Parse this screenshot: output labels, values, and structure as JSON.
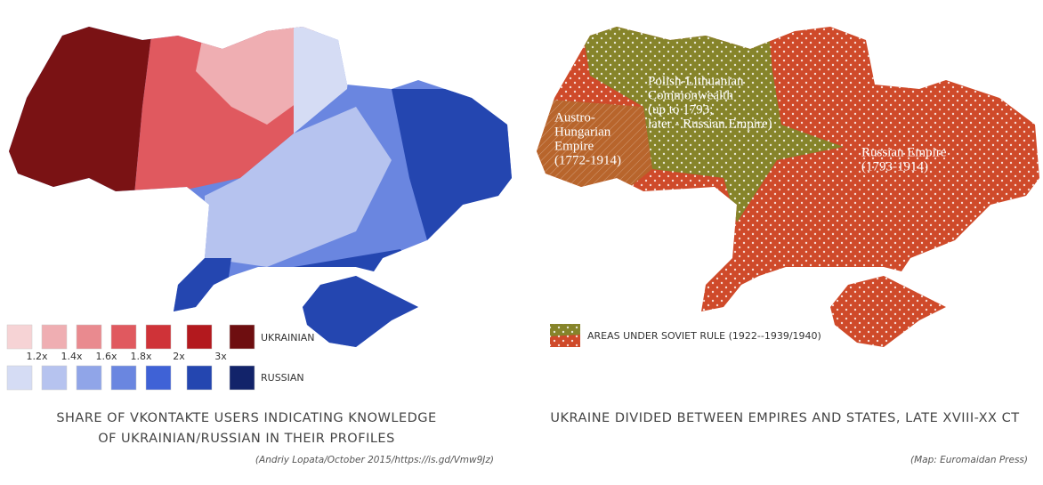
{
  "left_map": {
    "legend": {
      "ratios": [
        "1.2x",
        "1.4x",
        "1.6x",
        "1.8x",
        "2x",
        "3x"
      ],
      "ukrainian_label": "UKRAINIAN",
      "russian_label": "RUSSIAN"
    },
    "caption": [
      "SHARE OF VKONTAKTE USERS INDICATING KNOWLEDGE",
      "OF UKRAINIAN/RUSSIAN IN THEIR PROFILES"
    ],
    "credit": "(Andriy Lopata/October 2015/https://is.gd/Vmw9Jz)"
  },
  "right_map": {
    "regions": [
      {
        "lines": [
          "Austro-",
          "Hungarian",
          "Empire",
          "(1772-1914)"
        ]
      },
      {
        "lines": [
          "Polish-Lithuanian",
          "Commonwealth",
          "(up to 1793;",
          "later - Russian Empire)"
        ]
      },
      {
        "lines": [
          "Russian Empire",
          "(1793-1914)"
        ]
      }
    ],
    "legend": "AREAS UNDER SOVIET RULE (1922--1939/1940)",
    "caption": "UKRAINE DIVIDED BETWEEN EMPIRES AND STATES, LATE XVIII-XX CT",
    "credit": "(Map:  Euromaidan Press)"
  }
}
